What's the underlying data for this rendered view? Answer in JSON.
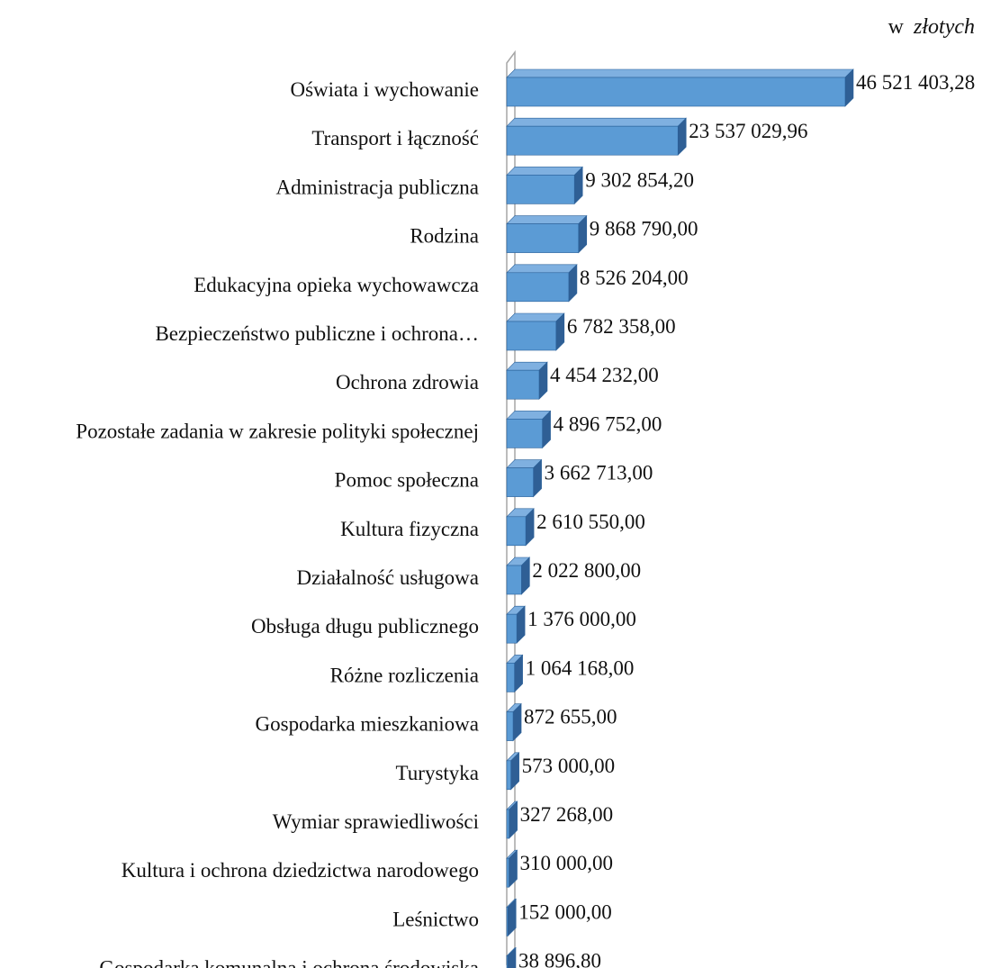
{
  "chart_data": {
    "type": "bar",
    "orientation": "horizontal",
    "style": "3d",
    "unit_note_prefix": "w",
    "unit_note_italic": "złotych",
    "categories": [
      "Oświata i wychowanie",
      "Transport i łączność",
      "Administracja publiczna",
      "Rodzina",
      "Edukacyjna opieka wychowawcza",
      "Bezpieczeństwo publiczne i ochrona…",
      "Ochrona zdrowia",
      "Pozostałe zadania w zakresie polityki społecznej",
      "Pomoc społeczna",
      "Kultura fizyczna",
      "Działalność usługowa",
      "Obsługa długu publicznego",
      "Różne rozliczenia",
      "Gospodarka mieszkaniowa",
      "Turystyka",
      "Wymiar sprawiedliwości",
      "Kultura i ochrona dziedzictwa narodowego",
      "Leśnictwo",
      "Gospodarka komunalna i ochrona środowiska"
    ],
    "values": [
      46521403.28,
      23537029.96,
      9302854.2,
      9868790.0,
      8526204.0,
      6782358.0,
      4454232.0,
      4896752.0,
      3662713.0,
      2610550.0,
      2022800.0,
      1376000.0,
      1064168.0,
      872655.0,
      573000.0,
      327268.0,
      310000.0,
      152000.0,
      38896.8
    ],
    "value_labels": [
      "46 521 403,28",
      "23 537 029,96",
      "9 302 854,20",
      "9 868 790,00",
      "8 526 204,00",
      "6 782 358,00",
      "4 454 232,00",
      "4 896 752,00",
      "3 662 713,00",
      "2 610 550,00",
      "2 022 800,00",
      "1 376 000,00",
      "1 064 168,00",
      "872 655,00",
      "573 000,00",
      "327 268,00",
      "310 000,00",
      "152 000,00",
      "38 896,80"
    ],
    "xlim": [
      0,
      46521403.28
    ],
    "legend": "none",
    "grid": false,
    "colors": {
      "bar_front": "#5b9bd5",
      "bar_top": "#7fb0e0",
      "bar_side": "#2f5f95",
      "bar_edge": "#2a6099",
      "axis_wall": "#a6a6a6",
      "text": "#111111"
    }
  }
}
